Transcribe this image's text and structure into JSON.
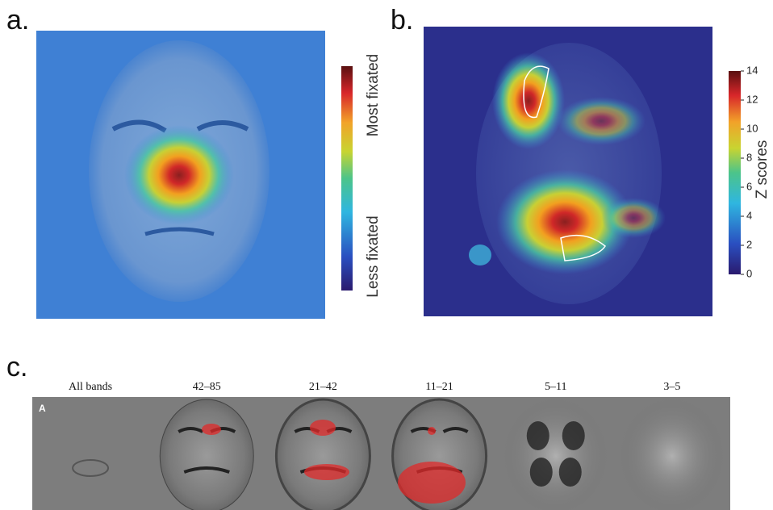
{
  "panel_a": {
    "label": "a.",
    "colorbar": {
      "top_label": "Most fixated",
      "bottom_label": "Less fixated"
    }
  },
  "panel_b": {
    "label": "b.",
    "colorbar": {
      "label": "Z scores",
      "lim": [
        0,
        14
      ],
      "ticks": [
        0,
        2,
        4,
        6,
        8,
        10,
        12,
        14
      ]
    }
  },
  "panel_c": {
    "label": "c.",
    "inset_label": "A",
    "bands": [
      "All bands",
      "42–85",
      "21–42",
      "11–21",
      "5–11",
      "3–5"
    ]
  }
}
